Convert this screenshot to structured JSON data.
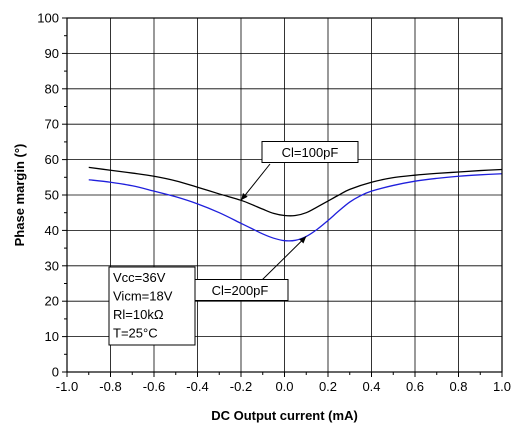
{
  "chart_data": {
    "type": "line",
    "title": "",
    "xlabel": "DC Output current (mA)",
    "ylabel": "Phase margin (°)",
    "xlim": [
      -1.0,
      1.0
    ],
    "ylim": [
      0,
      100
    ],
    "x_ticks": [
      "-1.0",
      "-0.8",
      "-0.6",
      "-0.4",
      "-0.2",
      "0.0",
      "0.2",
      "0.4",
      "0.6",
      "0.8",
      "1.0"
    ],
    "y_ticks": [
      "0",
      "10",
      "20",
      "30",
      "40",
      "50",
      "60",
      "70",
      "80",
      "90",
      "100"
    ],
    "grid": true,
    "series": [
      {
        "name": "Cl=100pF",
        "color": "#000000",
        "x": [
          -0.9,
          -0.8,
          -0.7,
          -0.6,
          -0.5,
          -0.4,
          -0.3,
          -0.2,
          -0.15,
          -0.1,
          -0.05,
          0.0,
          0.05,
          0.1,
          0.15,
          0.2,
          0.25,
          0.3,
          0.4,
          0.5,
          0.6,
          0.7,
          0.8,
          0.9,
          1.0
        ],
        "y": [
          57.8,
          57.0,
          56.2,
          55.3,
          54.0,
          52.2,
          50.3,
          48.5,
          47.3,
          46.0,
          44.8,
          44.2,
          44.2,
          45.0,
          46.6,
          48.3,
          50.0,
          51.6,
          53.6,
          54.9,
          55.6,
          56.1,
          56.5,
          56.9,
          57.2
        ]
      },
      {
        "name": "Cl=200pF",
        "color": "#1f1fdc",
        "x": [
          -0.9,
          -0.8,
          -0.7,
          -0.6,
          -0.5,
          -0.4,
          -0.3,
          -0.2,
          -0.15,
          -0.1,
          -0.05,
          0.0,
          0.05,
          0.1,
          0.15,
          0.2,
          0.25,
          0.3,
          0.35,
          0.4,
          0.5,
          0.6,
          0.7,
          0.8,
          0.9,
          1.0
        ],
        "y": [
          54.3,
          53.6,
          52.6,
          51.1,
          49.5,
          47.5,
          45.0,
          42.0,
          40.5,
          39.0,
          37.8,
          37.1,
          37.2,
          38.3,
          40.3,
          42.8,
          45.5,
          48.0,
          49.8,
          51.1,
          52.7,
          53.9,
          54.7,
          55.3,
          55.7,
          56.0
        ]
      }
    ],
    "annotations": [
      {
        "label": "Cl=100pF",
        "series": 0,
        "arrow_to": [
          -0.2,
          48.5
        ]
      },
      {
        "label": "Cl=200pF",
        "series": 1,
        "arrow_to": [
          0.1,
          38.3
        ]
      }
    ],
    "info_box": [
      "Vcc=36V",
      "Vicm=18V",
      "Rl=10kΩ",
      "T=25°C"
    ]
  }
}
